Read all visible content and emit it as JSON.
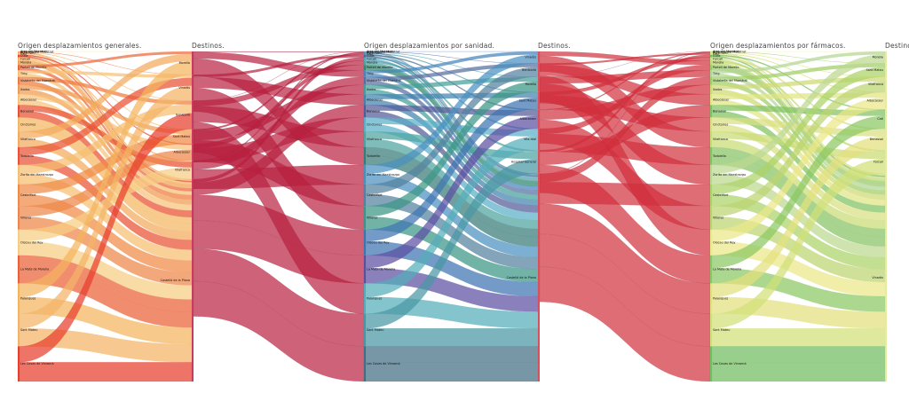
{
  "panels": [
    {
      "origin_title": "Origen desplazamientos generales.",
      "destination_title": "Destinos.",
      "origins": [
        "Ares del Maestrat",
        "Atzeneta del Maestrat",
        "Benafigos",
        "Catí",
        "Culla",
        "Forcall",
        "Morella",
        "Portell de Morella",
        "Tírig",
        "Vistabella del Maestrat",
        "Xodos",
        "Albocàsser",
        "Benassal",
        "Cinctorres",
        "Vilafranca",
        "Todolella",
        "Zorita del Maestrazgo",
        "Castellfort",
        "Villores",
        "Olocau del Rey",
        "La Mata de Morella",
        "Palanques",
        "Sant Mateu",
        "Les Coves de Vinromà"
      ],
      "destinations": [
        "Morella",
        "Vinaròs",
        "Benicarló",
        "Sant Mateu",
        "Albocàsser",
        "Vilafranca",
        "Castelló de la Plana"
      ]
    },
    {
      "origin_title": "Origen desplazamientos por sanidad.",
      "destination_title": "Destinos.",
      "origins": [
        "Ares del Maestrat",
        "Atzeneta del Maestrat",
        "Benafigos",
        "Catí",
        "Culla",
        "Forcall",
        "Morella",
        "Portell de Morella",
        "Tírig",
        "Vistabella del Maestrat",
        "Xodos",
        "Albocàsser",
        "Benassal",
        "Cinctorres",
        "Vilafranca",
        "Todolella",
        "Zorita del Maestrazgo",
        "Castellfort",
        "Villores",
        "Olocau del Rey",
        "La Mata de Morella",
        "Palanques",
        "Sant Mateu",
        "Les Coves de Vinromà"
      ],
      "destinations": [
        "Vinaròs",
        "Benicarló",
        "Morella",
        "Sant Mateu",
        "Albocàsser",
        "Vila-real",
        "Hospital General",
        "Castelló de la Plana"
      ]
    },
    {
      "origin_title": "Origen desplazamientos por fármacos.",
      "destination_title": "Destinos.",
      "origins": [
        "Ares del Maestrat",
        "Atzeneta del Maestrat",
        "Benafigos",
        "Catí",
        "Culla",
        "Forcall",
        "Morella",
        "Portell de Morella",
        "Tírig",
        "Vistabella del Maestrat",
        "Xodos",
        "Albocàsser",
        "Benassal",
        "Cinctorres",
        "Vilafranca",
        "Todolella",
        "Zorita del Maestrazgo",
        "Castellfort",
        "Villores",
        "Olocau del Rey",
        "La Mata de Morella",
        "Palanques",
        "Sant Mateu",
        "Les Coves de Vinromà"
      ],
      "destinations": [
        "Morella",
        "Sant Mateu",
        "Vilafranca",
        "Albocàsser",
        "Catí",
        "Benassal",
        "Forcall",
        "Vinaròs"
      ]
    }
  ]
}
